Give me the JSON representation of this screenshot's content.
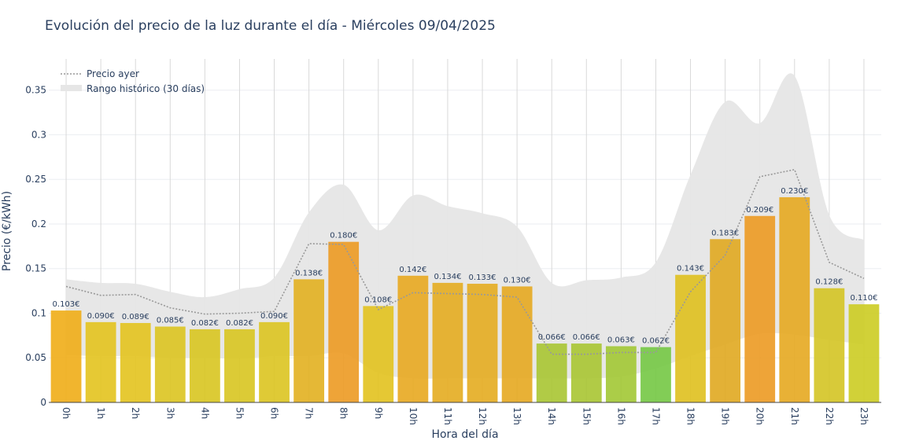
{
  "chart_data": {
    "type": "bar",
    "title": "Evolución del precio de la luz durante el día - Miércoles 09/04/2025",
    "xlabel": "Hora del día",
    "ylabel": "Precio (€/kWh)",
    "ylim": [
      0,
      0.385
    ],
    "yticks": [
      "0",
      "0.05",
      "0.1",
      "0.15",
      "0.2",
      "0.25",
      "0.3",
      "0.35"
    ],
    "grid": true,
    "legend_position": "top-left",
    "categories": [
      "0h",
      "1h",
      "2h",
      "3h",
      "4h",
      "5h",
      "6h",
      "7h",
      "8h",
      "9h",
      "10h",
      "11h",
      "12h",
      "13h",
      "14h",
      "15h",
      "16h",
      "17h",
      "18h",
      "19h",
      "20h",
      "21h",
      "22h",
      "23h"
    ],
    "series": [
      {
        "kind": "bar",
        "values": [
          0.103,
          0.09,
          0.089,
          0.085,
          0.082,
          0.082,
          0.09,
          0.138,
          0.18,
          0.108,
          0.142,
          0.134,
          0.133,
          0.13,
          0.066,
          0.066,
          0.063,
          0.062,
          0.143,
          0.183,
          0.209,
          0.23,
          0.128,
          0.11
        ],
        "labels": [
          "0.103€",
          "0.090€",
          "0.089€",
          "0.085€",
          "0.082€",
          "0.082€",
          "0.090€",
          "0.138€",
          "0.180€",
          "0.108€",
          "0.142€",
          "0.134€",
          "0.133€",
          "0.130€",
          "0.066€",
          "0.066€",
          "0.063€",
          "0.062€",
          "0.143€",
          "0.183€",
          "0.209€",
          "0.230€",
          "0.128€",
          "0.110€"
        ],
        "colors": [
          "#f0ad17",
          "#e3c31e",
          "#e3c31e",
          "#dcc420",
          "#d8c520",
          "#d8c520",
          "#dcc420",
          "#e2b020",
          "#ec9a22",
          "#e2c21e",
          "#e8a820",
          "#e4ac20",
          "#e4ac20",
          "#e6a820",
          "#a8c532",
          "#a8c532",
          "#a2c834",
          "#74c844",
          "#dfc01e",
          "#e0a820",
          "#ec9a22",
          "#e6a820",
          "#d4c424",
          "#cccc22"
        ]
      },
      {
        "name": "Precio ayer",
        "kind": "line",
        "color": "#999999",
        "values": [
          0.13,
          0.12,
          0.121,
          0.106,
          0.099,
          0.1,
          0.102,
          0.178,
          0.177,
          0.104,
          0.123,
          0.122,
          0.121,
          0.118,
          0.054,
          0.054,
          0.056,
          0.056,
          0.124,
          0.165,
          0.253,
          0.261,
          0.157,
          0.139
        ]
      },
      {
        "name": "Rango histórico (30 días)",
        "kind": "band",
        "color": "#e6e6e6",
        "upper": [
          0.138,
          0.134,
          0.133,
          0.124,
          0.118,
          0.127,
          0.14,
          0.213,
          0.244,
          0.193,
          0.232,
          0.22,
          0.212,
          0.197,
          0.134,
          0.137,
          0.14,
          0.157,
          0.255,
          0.337,
          0.313,
          0.366,
          0.21,
          0.182
        ],
        "lower": [
          0.053,
          0.052,
          0.052,
          0.05,
          0.05,
          0.049,
          0.052,
          0.052,
          0.055,
          0.033,
          0.027,
          0.027,
          0.027,
          0.027,
          0.027,
          0.027,
          0.029,
          0.038,
          0.052,
          0.065,
          0.077,
          0.076,
          0.07,
          0.065
        ]
      }
    ]
  }
}
